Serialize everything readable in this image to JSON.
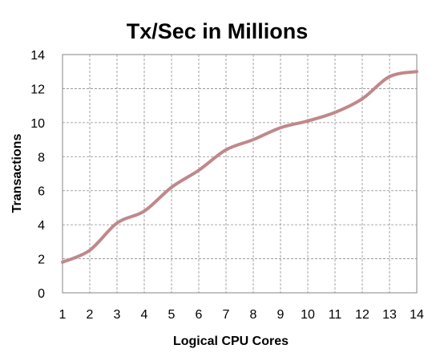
{
  "chart_data": {
    "type": "line",
    "title": "Tx/Sec in Millions",
    "xlabel": "Logical CPU Cores",
    "ylabel": "Transactions",
    "xlim": [
      1,
      14
    ],
    "ylim": [
      0,
      14
    ],
    "x_ticks": [
      "1",
      "2",
      "3",
      "4",
      "5",
      "6",
      "7",
      "8",
      "9",
      "10",
      "11",
      "12",
      "13",
      "14"
    ],
    "y_ticks": [
      "0",
      "2",
      "4",
      "6",
      "8",
      "10",
      "12",
      "14"
    ],
    "grid": true,
    "legend": "none",
    "line_color": "#c0888a",
    "series": [
      {
        "x": [
          1,
          2,
          3,
          4,
          5,
          6,
          7,
          8,
          9,
          10,
          11,
          12,
          13,
          14
        ],
        "values": [
          1.8,
          2.5,
          4.1,
          4.8,
          6.2,
          7.2,
          8.4,
          9.0,
          9.7,
          10.1,
          10.6,
          11.4,
          12.7,
          13.0
        ]
      }
    ]
  }
}
